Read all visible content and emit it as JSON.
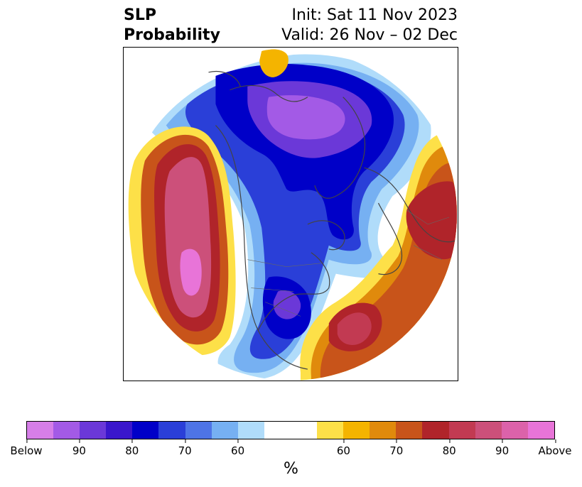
{
  "title": {
    "left_line1": "SLP",
    "left_line2": "Probability",
    "right_line1": "Init: Sat 11 Nov 2023",
    "right_line2": "Valid: 26 Nov – 02 Dec"
  },
  "colorbar": {
    "label": "%",
    "ticks": [
      "Below",
      "90",
      "80",
      "70",
      "60",
      "60",
      "70",
      "80",
      "90",
      "Above"
    ],
    "colors": [
      "#d67ee8",
      "#a35ae6",
      "#6b38d8",
      "#3a16cc",
      "#0000c8",
      "#2a3fd8",
      "#4e74e6",
      "#76b0f2",
      "#b0dcfa",
      "#ffffff",
      "#fde048",
      "#f4b400",
      "#e08a0c",
      "#c8541a",
      "#b0242a",
      "#c23a52",
      "#cc507a",
      "#dc62aa",
      "#e874d8"
    ]
  },
  "map": {
    "projection": "north-polar-stereographic",
    "colors": {
      "outline": "#444444",
      "deep_above": "#e874d8",
      "above_90": "#cc507a",
      "above_80": "#b0242a",
      "above_70": "#c8541a",
      "above_60": "#f4b400",
      "below_60": "#76b0f2",
      "below_70": "#2a3fd8",
      "below_80": "#0000c8",
      "below_90": "#6b38d8",
      "deep_below": "#a35ae6"
    }
  }
}
